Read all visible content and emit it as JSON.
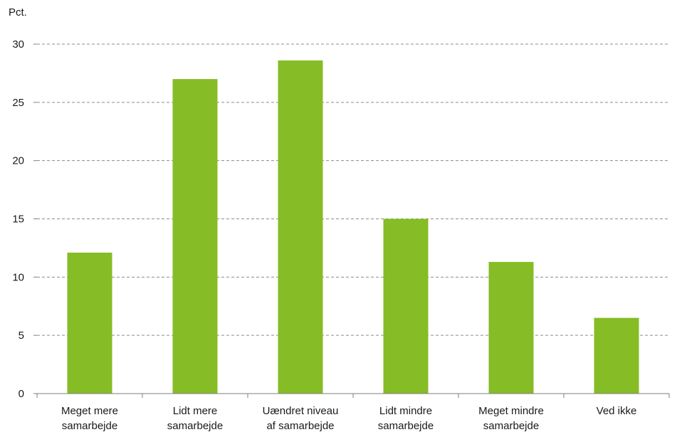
{
  "chart_data": {
    "type": "bar",
    "unit_label": "Pct.",
    "categories": [
      [
        "Meget mere",
        "samarbejde"
      ],
      [
        "Lidt mere",
        "samarbejde"
      ],
      [
        "Uændret niveau",
        "af samarbejde"
      ],
      [
        "Lidt mindre",
        "samarbejde"
      ],
      [
        "Meget mindre",
        "samarbejde"
      ],
      [
        "Ved ikke"
      ]
    ],
    "values": [
      12.1,
      27.0,
      28.6,
      15.0,
      11.3,
      6.5
    ],
    "ylim": [
      0,
      30
    ],
    "yticks": [
      0,
      5,
      10,
      15,
      20,
      25,
      30
    ],
    "grid": true,
    "bar_color": "#86bc25",
    "grid_color": "#8c8c8c",
    "axis_color": "#7f7f7f"
  }
}
